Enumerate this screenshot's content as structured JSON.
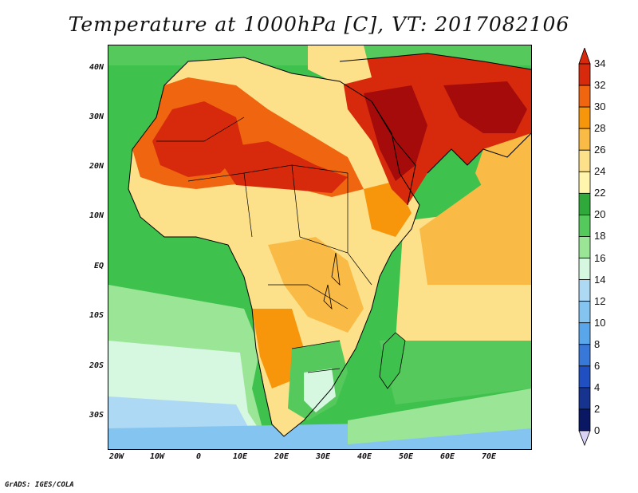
{
  "title": "Temperature at 1000hPa [C], VT: 2017082106",
  "credit": "GrADS: IGES/COLA",
  "map": {
    "region": "Africa, Arabian Peninsula and South Asia",
    "lat_labels": [
      "40N",
      "30N",
      "20N",
      "10N",
      "EQ",
      "10S",
      "20S",
      "30S"
    ],
    "lon_labels": [
      "20W",
      "10W",
      "0",
      "10E",
      "20E",
      "30E",
      "40E",
      "50E",
      "60E",
      "70E"
    ],
    "ocean_color": "#3fc24d"
  },
  "legend": {
    "levels": [
      "34",
      "32",
      "30",
      "28",
      "26",
      "24",
      "22",
      "20",
      "18",
      "16",
      "14",
      "12",
      "10",
      "8",
      "6",
      "4",
      "2",
      "0"
    ],
    "colors": [
      "#a50b0b",
      "#d72a0c",
      "#ef6510",
      "#f7960a",
      "#f9bb45",
      "#fde18a",
      "#fff5ad",
      "#2faa3a",
      "#55c95c",
      "#9be596",
      "#d6f7e0",
      "#aed9f4",
      "#84c4f0",
      "#5aa6ea",
      "#3878d9",
      "#204fc2",
      "#163390",
      "#0a1863"
    ],
    "over_color": "#d72a0c",
    "under_color": "#d9d4f5"
  }
}
